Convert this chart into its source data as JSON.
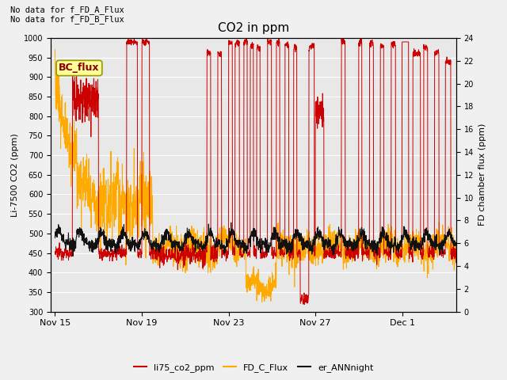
{
  "title": "CO2 in ppm",
  "xlabel_ticks": [
    "Nov 15",
    "Nov 19",
    "Nov 23",
    "Nov 27",
    "Dec 1"
  ],
  "ylabel_left": "Li-7500 CO2 (ppm)",
  "ylabel_right": "FD chamber flux (ppm)",
  "ylim_left": [
    300,
    1000
  ],
  "ylim_right": [
    0,
    24
  ],
  "yticks_left": [
    300,
    350,
    400,
    450,
    500,
    550,
    600,
    650,
    700,
    750,
    800,
    850,
    900,
    950,
    1000
  ],
  "yticks_right": [
    0,
    2,
    4,
    6,
    8,
    10,
    12,
    14,
    16,
    18,
    20,
    22,
    24
  ],
  "color_red": "#cc0000",
  "color_orange": "#ffaa00",
  "color_black": "#111111",
  "legend_labels": [
    "li75_co2_ppm",
    "FD_C_Flux",
    "er_ANNnight"
  ],
  "text_no_data_1": "No data for f_FD_A_Flux",
  "text_no_data_2": "No data for f_FD_B_Flux",
  "bc_flux_label": "BC_flux",
  "background_color": "#e8e8e8",
  "grid_color": "#ffffff",
  "n_points": 2000,
  "xtick_positions": [
    0,
    4,
    8,
    12,
    16
  ],
  "xlim": [
    -0.2,
    18.5
  ]
}
